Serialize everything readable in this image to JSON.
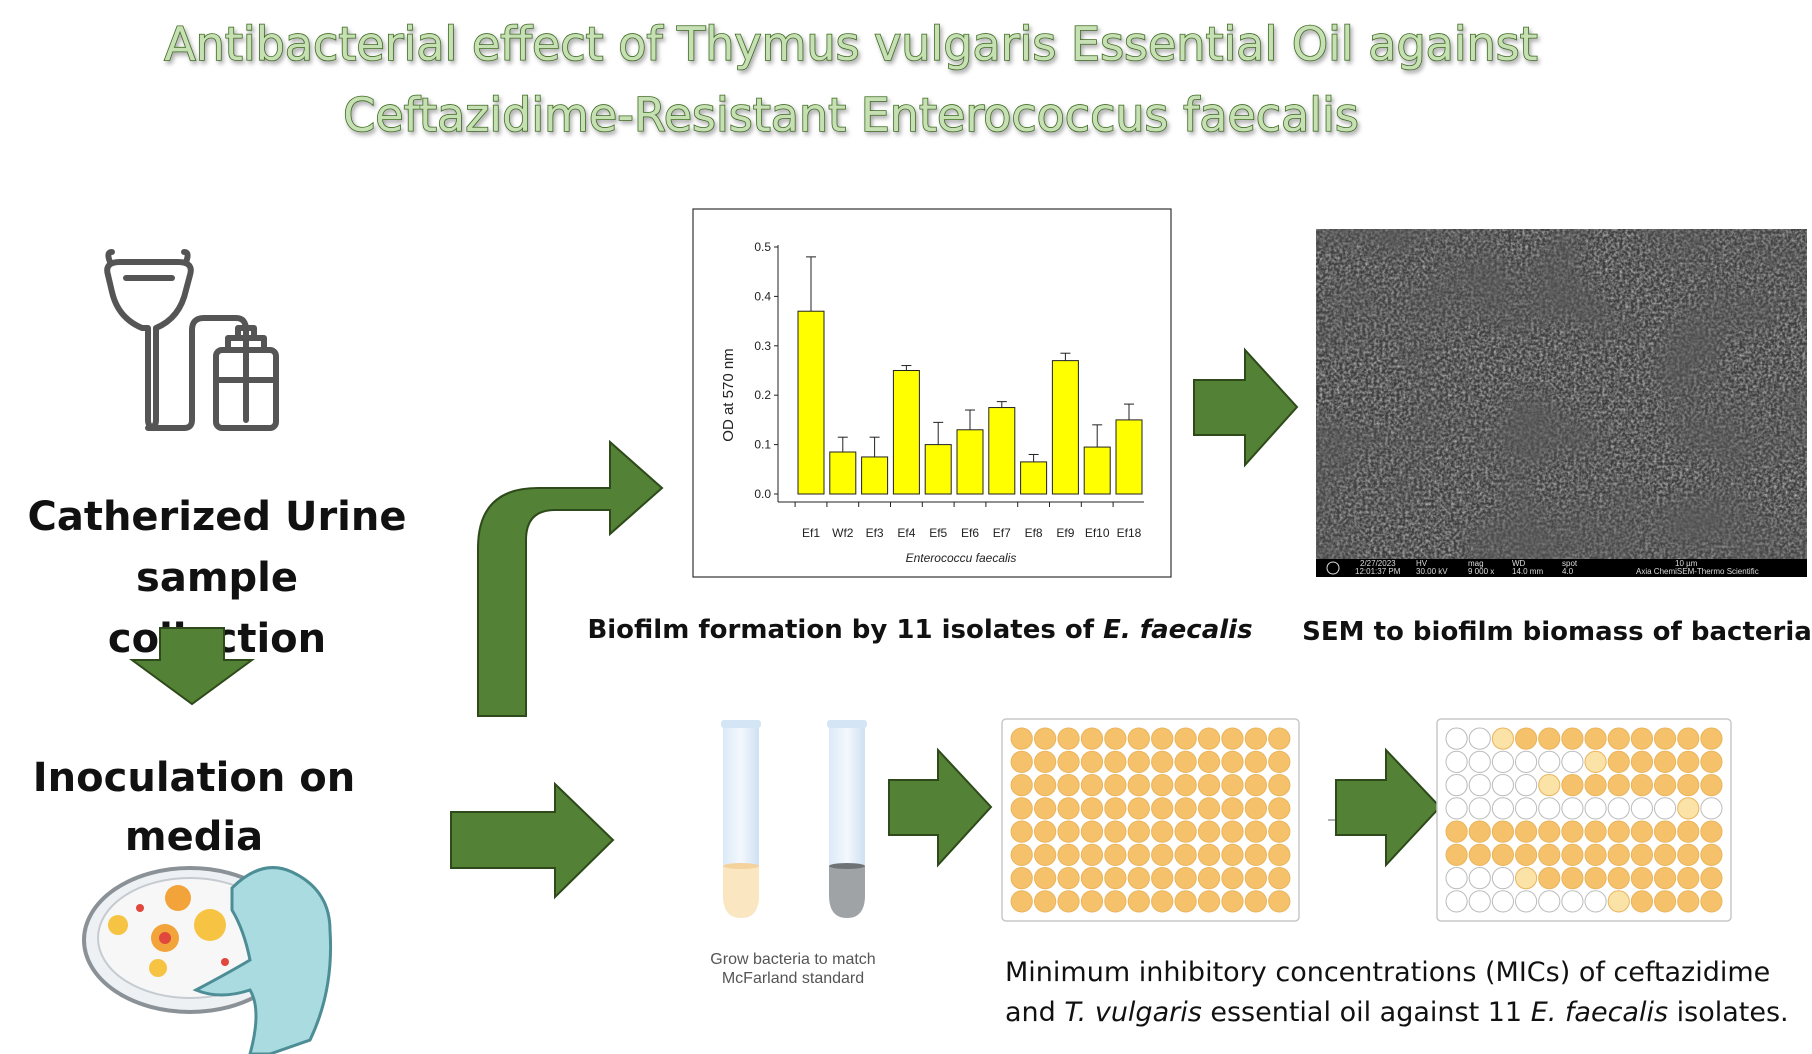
{
  "header": {
    "title": [
      "Antibacterial effect of Thymus vulgaris Essential Oil against",
      "Ceftazidime-Resistant Enterococcus faecalis"
    ]
  },
  "steps": {
    "collection": [
      "Catherized Urine",
      "sample",
      "collection"
    ],
    "inoculation": [
      "Inoculation on",
      "media"
    ]
  },
  "chart_data": {
    "type": "bar",
    "categories": [
      "Ef1",
      "Wf2",
      "Ef3",
      "Ef4",
      "Ef5",
      "Ef6",
      "Ef7",
      "Ef8",
      "Ef9",
      "Ef10",
      "Ef18"
    ],
    "values": [
      0.37,
      0.085,
      0.075,
      0.25,
      0.1,
      0.13,
      0.175,
      0.065,
      0.27,
      0.095,
      0.15
    ],
    "errors": [
      0.11,
      0.03,
      0.04,
      0.01,
      0.045,
      0.04,
      0.012,
      0.015,
      0.015,
      0.045,
      0.032
    ],
    "color": "#ffff00",
    "ylim": [
      0,
      0.5
    ],
    "yticks": [
      {
        "value": 0,
        "label": "0.0"
      },
      0.1,
      0.2,
      0.3,
      0.4,
      0.5
    ],
    "ylabel": "OD at 570 nm",
    "xlabel": "Enterococcu faecalis"
  },
  "sem_info": [
    "2/27/2023",
    "12:01:37 PM",
    "HV",
    "30.00 kV",
    "mag",
    "9 000 x",
    "WD",
    "14.0 mm",
    "spot",
    "4.0",
    "10 µm",
    "Axia ChemiSEM-Thermo Scientific"
  ],
  "captions": {
    "biofilm": [
      "Biofilm formation by 11 isolates of ",
      "E. faecalis"
    ],
    "sem": "SEM to biofilm biomass of bacteria",
    "tubes": [
      "Grow bacteria to match",
      "McFarland standard"
    ],
    "mic": [
      "Minimum inhibitory concentrations (MICs) of ceftazidime",
      "and ",
      "T. vulgaris",
      " essential oil against 11 ",
      "E. faecalis",
      " isolates."
    ]
  }
}
